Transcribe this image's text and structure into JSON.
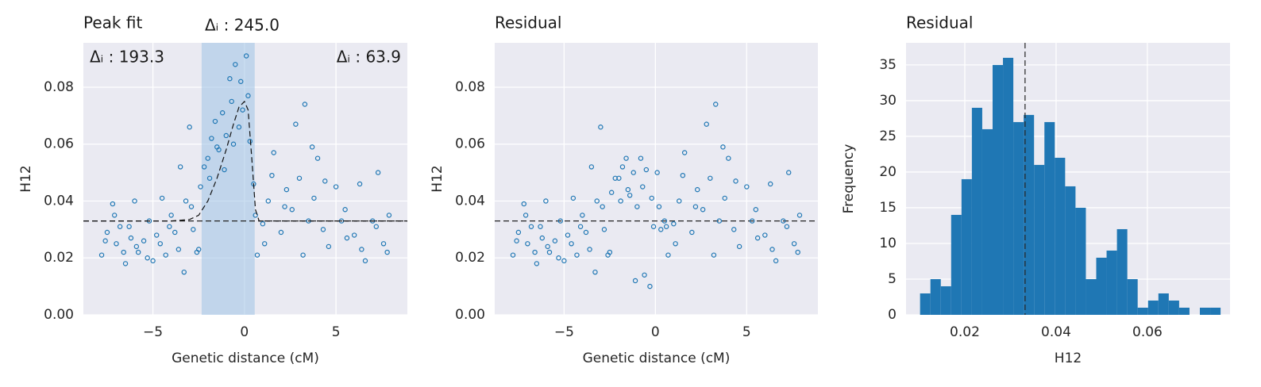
{
  "chart_data": [
    {
      "type": "scatter",
      "title": "Peak fit",
      "xlabel": "Genetic distance (cM)",
      "ylabel": "H12",
      "annotations": [
        "Δᵢ : 193.3",
        "Δᵢ : 245.0",
        "Δᵢ : 63.9"
      ],
      "color": "#1f77b4",
      "x": [
        -7.8,
        -7.5,
        -7.2,
        -7.0,
        -6.8,
        -6.5,
        -6.2,
        -6.0,
        -5.8,
        -5.5,
        -5.2,
        -5.0,
        -4.8,
        -4.5,
        -4.3,
        -4.0,
        -3.8,
        -3.5,
        -3.2,
        -3.0,
        -2.8,
        -2.6,
        -2.4,
        -2.2,
        -2.0,
        -1.8,
        -1.6,
        -1.4,
        -1.2,
        -1.0,
        -0.8,
        -0.6,
        -0.5,
        -0.3,
        -0.1,
        0.1,
        0.3,
        0.5,
        0.7,
        1.0,
        1.3,
        1.6,
        2.0,
        2.3,
        2.6,
        3.0,
        3.3,
        3.5,
        3.8,
        4.0,
        4.3,
        4.6,
        5.0,
        5.3,
        5.6,
        6.0,
        6.3,
        6.6,
        7.0,
        7.3,
        7.6,
        7.9,
        -7.6,
        -7.1,
        -6.6,
        -6.3,
        -5.9,
        -5.3,
        -4.6,
        -4.1,
        -3.6,
        -3.3,
        -2.9,
        -2.5,
        -1.9,
        -1.5,
        -1.1,
        -0.7,
        -0.2,
        0.2,
        0.6,
        1.1,
        1.5,
        2.2,
        2.8,
        3.2,
        3.7,
        4.4,
        5.5,
        6.4,
        7.2,
        7.8
      ],
      "values": [
        0.021,
        0.029,
        0.039,
        0.025,
        0.031,
        0.018,
        0.027,
        0.04,
        0.022,
        0.026,
        0.033,
        0.019,
        0.028,
        0.041,
        0.021,
        0.035,
        0.029,
        0.052,
        0.04,
        0.066,
        0.03,
        0.022,
        0.045,
        0.052,
        0.055,
        0.062,
        0.068,
        0.058,
        0.071,
        0.063,
        0.083,
        0.06,
        0.088,
        0.066,
        0.072,
        0.091,
        0.061,
        0.046,
        0.021,
        0.032,
        0.04,
        0.057,
        0.029,
        0.044,
        0.037,
        0.048,
        0.074,
        0.033,
        0.041,
        0.055,
        0.03,
        0.024,
        0.045,
        0.033,
        0.027,
        0.028,
        0.046,
        0.019,
        0.033,
        0.05,
        0.025,
        0.035,
        0.026,
        0.035,
        0.022,
        0.031,
        0.024,
        0.02,
        0.025,
        0.031,
        0.023,
        0.015,
        0.038,
        0.023,
        0.048,
        0.059,
        0.051,
        0.075,
        0.082,
        0.077,
        0.035,
        0.025,
        0.049,
        0.038,
        0.067,
        0.021,
        0.059,
        0.047,
        0.037,
        0.023,
        0.031,
        0.022
      ],
      "fit": {
        "x": [
          -8.8,
          -4,
          -3,
          -2.5,
          -2,
          -1.5,
          -1,
          -0.6,
          -0.3,
          0,
          0.2,
          0.4,
          0.6,
          0.8,
          8.9
        ],
        "values": [
          0.033,
          0.033,
          0.0335,
          0.035,
          0.04,
          0.048,
          0.058,
          0.067,
          0.073,
          0.075,
          0.072,
          0.055,
          0.037,
          0.033,
          0.033
        ]
      },
      "hline": 0.033,
      "span": [
        -2.34,
        0.56
      ],
      "xlim": [
        -8.8,
        8.9
      ],
      "ylim": [
        0,
        0.0956
      ],
      "xticks": [
        {
          "value": -5,
          "label": "−5"
        },
        0,
        5
      ],
      "yticks": [
        {
          "value": 0,
          "label": "0.00"
        },
        0.02,
        0.04,
        0.06,
        0.08
      ],
      "grid": true
    },
    {
      "type": "scatter",
      "title": "Residual",
      "xlabel": "Genetic distance (cM)",
      "ylabel": "H12",
      "color": "#1f77b4",
      "x": [
        -7.8,
        -7.5,
        -7.2,
        -7.0,
        -6.8,
        -6.5,
        -6.2,
        -6.0,
        -5.8,
        -5.5,
        -5.2,
        -5.0,
        -4.8,
        -4.5,
        -4.3,
        -4.0,
        -3.8,
        -3.5,
        -3.2,
        -3.0,
        -2.8,
        -2.6,
        -2.4,
        -2.2,
        -2.0,
        -1.8,
        -1.6,
        -1.4,
        -1.2,
        -1.0,
        -0.8,
        -0.6,
        -0.5,
        -0.3,
        -0.1,
        0.1,
        0.3,
        0.5,
        0.7,
        1.0,
        1.3,
        1.6,
        2.0,
        2.3,
        2.6,
        3.0,
        3.3,
        3.5,
        3.8,
        4.0,
        4.3,
        4.6,
        5.0,
        5.3,
        5.6,
        6.0,
        6.3,
        6.6,
        7.0,
        7.3,
        7.6,
        7.9,
        -7.6,
        -7.1,
        -6.6,
        -6.3,
        -5.9,
        -5.3,
        -4.6,
        -4.1,
        -3.6,
        -3.3,
        -2.9,
        -2.5,
        -1.9,
        -1.5,
        -1.1,
        -0.7,
        -0.2,
        0.2,
        0.6,
        1.1,
        1.5,
        2.2,
        2.8,
        3.2,
        3.7,
        4.4,
        5.5,
        6.4,
        7.2,
        7.8
      ],
      "values": [
        0.021,
        0.029,
        0.039,
        0.025,
        0.031,
        0.018,
        0.027,
        0.04,
        0.022,
        0.026,
        0.033,
        0.019,
        0.028,
        0.041,
        0.021,
        0.035,
        0.029,
        0.052,
        0.04,
        0.066,
        0.03,
        0.021,
        0.043,
        0.048,
        0.048,
        0.052,
        0.055,
        0.042,
        0.05,
        0.038,
        0.055,
        0.014,
        0.051,
        0.01,
        0.031,
        0.05,
        0.03,
        0.033,
        0.021,
        0.032,
        0.04,
        0.057,
        0.029,
        0.044,
        0.037,
        0.048,
        0.074,
        0.033,
        0.041,
        0.055,
        0.03,
        0.024,
        0.045,
        0.033,
        0.027,
        0.028,
        0.046,
        0.019,
        0.033,
        0.05,
        0.025,
        0.035,
        0.026,
        0.035,
        0.022,
        0.031,
        0.024,
        0.02,
        0.025,
        0.031,
        0.023,
        0.015,
        0.038,
        0.022,
        0.04,
        0.044,
        0.012,
        0.045,
        0.041,
        0.038,
        0.031,
        0.025,
        0.049,
        0.038,
        0.067,
        0.021,
        0.059,
        0.047,
        0.037,
        0.023,
        0.031,
        0.022
      ],
      "hline": 0.033,
      "xlim": [
        -8.8,
        8.9
      ],
      "ylim": [
        0,
        0.0956
      ],
      "xticks": [
        {
          "value": -5,
          "label": "−5"
        },
        0,
        5
      ],
      "yticks": [
        {
          "value": 0,
          "label": "0.00"
        },
        0.02,
        0.04,
        0.06,
        0.08
      ],
      "grid": true
    },
    {
      "type": "histogram",
      "title": "Residual",
      "xlabel": "H12",
      "ylabel": "Frequency",
      "color": "#1f77b4",
      "bins": [
        0.0102,
        0.01247,
        0.01474,
        0.01701,
        0.01928,
        0.02155,
        0.02382,
        0.02609,
        0.02836,
        0.03063,
        0.0329,
        0.03517,
        0.03744,
        0.03971,
        0.04198,
        0.04425,
        0.04652,
        0.04879,
        0.05106,
        0.05333,
        0.0556,
        0.05787,
        0.06014,
        0.06241,
        0.06468,
        0.06695,
        0.06922,
        0.07149,
        0.07376,
        0.07603
      ],
      "counts": [
        3,
        5,
        4,
        14,
        19,
        29,
        26,
        35,
        36,
        27,
        28,
        21,
        27,
        22,
        18,
        15,
        5,
        8,
        9,
        12,
        5,
        1,
        2,
        3,
        2,
        1,
        0,
        1,
        1
      ],
      "vline": 0.0332,
      "xlim": [
        0.00713,
        0.0781
      ],
      "ylim": [
        0,
        38.1
      ],
      "xticks": [
        0.02,
        0.04,
        0.06
      ],
      "yticks": [
        0,
        5,
        10,
        15,
        20,
        25,
        30,
        35
      ],
      "grid": true
    }
  ]
}
